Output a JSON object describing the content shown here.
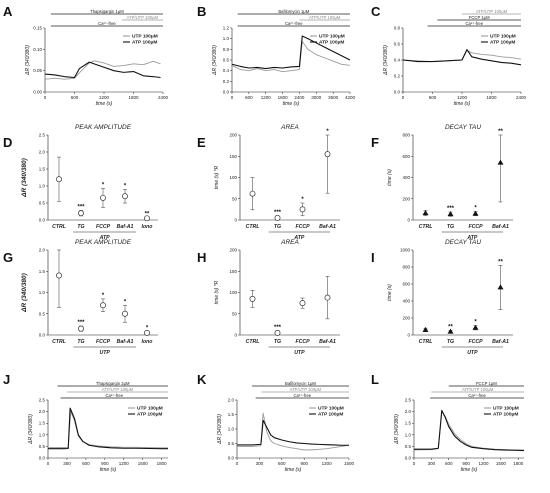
{
  "colors": {
    "atp": "#111111",
    "utp": "#9a9a9a",
    "bar": "#555555",
    "ink": "#222222"
  },
  "chart_data": [
    {
      "panel": "A",
      "type": "line",
      "xlabel": "time (s)",
      "ylabel": "ΔR (340/380)",
      "xlim": [
        0,
        2400
      ],
      "ylim": [
        0.0,
        0.15
      ],
      "xticks": [
        0,
        600,
        1200,
        1800,
        2400
      ],
      "yticks": [
        0,
        0.05,
        0.1,
        0.15
      ],
      "ytick_labels": [
        "0.00",
        "0.05",
        "0.10",
        "0.15"
      ],
      "bars": [
        {
          "label": "Thapsigargin 1μM",
          "start": 120,
          "end": 2400,
          "color": "ink"
        },
        {
          "label": "ATP/UTP 100μM",
          "start": 1560,
          "end": 2400,
          "color": "utp"
        },
        {
          "label": "Ca²⁺-free",
          "start": 120,
          "end": 2400,
          "color": "ink"
        }
      ],
      "series": [
        {
          "name": "UTP 100μM",
          "color": "utp",
          "x": [
            0,
            200,
            400,
            600,
            700,
            900,
            1000,
            1200,
            1400,
            1600,
            1800,
            2000,
            2200,
            2350
          ],
          "y": [
            0.03,
            0.032,
            0.03,
            0.032,
            0.045,
            0.068,
            0.073,
            0.068,
            0.06,
            0.062,
            0.066,
            0.064,
            0.072,
            0.066
          ]
        },
        {
          "name": "ATP 100μM",
          "color": "atp",
          "x": [
            0,
            200,
            400,
            600,
            700,
            900,
            1000,
            1200,
            1400,
            1600,
            1800,
            2000,
            2200,
            2350
          ],
          "y": [
            0.042,
            0.04,
            0.036,
            0.034,
            0.055,
            0.07,
            0.066,
            0.058,
            0.05,
            0.046,
            0.048,
            0.038,
            0.036,
            0.034
          ]
        }
      ]
    },
    {
      "panel": "B",
      "type": "line",
      "xlabel": "time (s)",
      "ylabel": "ΔR (340/380)",
      "xlim": [
        0,
        4200
      ],
      "ylim": [
        0,
        1.2
      ],
      "xticks": [
        0,
        600,
        1200,
        1800,
        2400,
        3000,
        3600,
        4200
      ],
      "yticks": [
        0,
        0.2,
        0.4,
        0.6,
        0.8,
        1.0,
        1.2
      ],
      "ytick_labels": [
        "0.0",
        "0.2",
        "0.4",
        "0.6",
        "0.8",
        "1.0",
        "1.2"
      ],
      "bars": [
        {
          "label": "Bafilomycin 1μM",
          "start": 200,
          "end": 4200,
          "color": "ink"
        },
        {
          "label": "ATP/UTP 100μM",
          "start": 2400,
          "end": 4200,
          "color": "utp"
        },
        {
          "label": "Ca²⁺-free",
          "start": 200,
          "end": 4200,
          "color": "ink"
        }
      ],
      "series": [
        {
          "name": "UTP 100μM",
          "color": "utp",
          "x": [
            0,
            300,
            600,
            900,
            1200,
            1500,
            1800,
            2100,
            2400,
            2500,
            2700,
            3000,
            3300,
            3600,
            3900,
            4200
          ],
          "y": [
            0.5,
            0.42,
            0.4,
            0.44,
            0.4,
            0.42,
            0.38,
            0.4,
            0.42,
            0.95,
            0.8,
            0.7,
            0.64,
            0.58,
            0.52,
            0.5
          ]
        },
        {
          "name": "ATP 100μM",
          "color": "atp",
          "x": [
            0,
            300,
            600,
            900,
            1200,
            1500,
            1800,
            2100,
            2400,
            2500,
            2700,
            3000,
            3300,
            3600,
            3900,
            4200
          ],
          "y": [
            0.52,
            0.48,
            0.45,
            0.46,
            0.44,
            0.46,
            0.45,
            0.47,
            0.48,
            1.05,
            1.0,
            0.92,
            0.84,
            0.76,
            0.68,
            0.6
          ]
        }
      ]
    },
    {
      "panel": "C",
      "type": "line",
      "xlabel": "time (s)",
      "ylabel": "ΔR (340/380)",
      "xlim": [
        0,
        2400
      ],
      "ylim": [
        0.0,
        0.8
      ],
      "xticks": [
        0,
        600,
        1200,
        1800,
        2400
      ],
      "yticks": [
        0,
        0.2,
        0.4,
        0.6,
        0.8
      ],
      "ytick_labels": [
        "0.0",
        "0.2",
        "0.4",
        "0.6",
        "0.8"
      ],
      "bars": [
        {
          "label": "ATP/UTP 100μM",
          "start": 1200,
          "end": 2400,
          "color": "utp"
        },
        {
          "label": "FCCP 1μM",
          "start": 700,
          "end": 2400,
          "color": "ink"
        },
        {
          "label": "Ca²⁺-free",
          "start": 500,
          "end": 2400,
          "color": "ink"
        }
      ],
      "series": [
        {
          "name": "UTP 100μM",
          "color": "utp",
          "x": [
            0,
            300,
            600,
            900,
            1200,
            1300,
            1400,
            1600,
            1800,
            2000,
            2200,
            2400
          ],
          "y": [
            0.4,
            0.39,
            0.38,
            0.39,
            0.4,
            0.52,
            0.49,
            0.47,
            0.46,
            0.44,
            0.43,
            0.41
          ]
        },
        {
          "name": "ATP 100μM",
          "color": "atp",
          "x": [
            0,
            300,
            600,
            900,
            1200,
            1300,
            1400,
            1600,
            1800,
            2000,
            2200,
            2400
          ],
          "y": [
            0.4,
            0.38,
            0.38,
            0.39,
            0.4,
            0.53,
            0.44,
            0.41,
            0.39,
            0.37,
            0.36,
            0.34
          ]
        }
      ]
    },
    {
      "panel": "D",
      "type": "scatter",
      "title": "PEAK AMPLITUDE",
      "group": "ATP",
      "ylabel": "ΔR (340/380)",
      "ylim": [
        0,
        2.5
      ],
      "yticks": [
        0,
        0.5,
        1,
        1.5,
        2,
        2.5
      ],
      "ytick_labels": [
        "0.0",
        "0.5",
        "1.0",
        "1.5",
        "2.0",
        "2.5"
      ],
      "categories": [
        "CTRL",
        "TG",
        "FCCP",
        "Baf-A1",
        "Iono"
      ],
      "values": [
        1.2,
        0.2,
        0.65,
        0.7,
        0.05
      ],
      "err": [
        0.65,
        0.08,
        0.28,
        0.2,
        0.03
      ],
      "sig": [
        "",
        "***",
        "*",
        "*",
        "**"
      ]
    },
    {
      "panel": "E",
      "type": "scatter",
      "title": "AREA",
      "group": "ATP",
      "ylabel": "time (s) *R",
      "ylim": [
        0,
        200
      ],
      "yticks": [
        0,
        50,
        100,
        150,
        200
      ],
      "ytick_labels": [
        "0",
        "50",
        "100",
        "150",
        "200"
      ],
      "categories": [
        "CTRL",
        "TG",
        "FCCP",
        "Baf-A1"
      ],
      "values": [
        62,
        5,
        25,
        155
      ],
      "err": [
        38,
        4,
        15,
        92
      ],
      "sig": [
        "",
        "***",
        "*",
        "*"
      ]
    },
    {
      "panel": "F",
      "type": "scatter",
      "title": "DECAY TAU",
      "group": "ATP",
      "ylabel": "time (s)",
      "ylim": [
        0,
        800
      ],
      "yticks": [
        0,
        200,
        400,
        600,
        800
      ],
      "ytick_labels": [
        "0",
        "200",
        "400",
        "600",
        "800"
      ],
      "categories": [
        "CTRL",
        "TG",
        "FCCP",
        "Baf-A1"
      ],
      "values": [
        65,
        55,
        60,
        540
      ],
      "err": [
        25,
        20,
        20,
        370
      ],
      "sig": [
        "",
        "***",
        "*",
        "**"
      ]
    },
    {
      "panel": "G",
      "type": "scatter",
      "title": "PEAK AMPLITUDE",
      "group": "UTP",
      "ylabel": "ΔR (340/380)",
      "ylim": [
        0,
        2.0
      ],
      "yticks": [
        0,
        0.5,
        1,
        1.5,
        2
      ],
      "ytick_labels": [
        "0.0",
        "0.5",
        "1.0",
        "1.5",
        "2.0"
      ],
      "categories": [
        "CTRL",
        "TG",
        "FCCP",
        "Baf-A1",
        "Iono"
      ],
      "values": [
        1.4,
        0.15,
        0.7,
        0.5,
        0.05
      ],
      "err": [
        0.75,
        0.06,
        0.15,
        0.2,
        0.03
      ],
      "sig": [
        "",
        "***",
        "*",
        "*",
        "*"
      ]
    },
    {
      "panel": "H",
      "type": "scatter",
      "title": "AREA",
      "group": "UTP",
      "ylabel": "time (s) *R",
      "ylim": [
        0,
        200
      ],
      "yticks": [
        0,
        50,
        100,
        150,
        200
      ],
      "ytick_labels": [
        "0",
        "50",
        "100",
        "150",
        "200"
      ],
      "categories": [
        "CTRL",
        "TG",
        "FCCP",
        "Baf-A1"
      ],
      "values": [
        85,
        5,
        75,
        88
      ],
      "err": [
        20,
        4,
        12,
        50
      ],
      "sig": [
        "",
        "***",
        "",
        ""
      ]
    },
    {
      "panel": "I",
      "type": "scatter",
      "title": "DECAY TAU",
      "group": "UTP",
      "ylabel": "time (s)",
      "ylim": [
        0,
        1000
      ],
      "yticks": [
        0,
        200,
        400,
        600,
        800,
        1000
      ],
      "ytick_labels": [
        "0",
        "200",
        "400",
        "600",
        "800",
        "1000"
      ],
      "categories": [
        "CTRL",
        "TG",
        "FCCP",
        "Baf-A1"
      ],
      "values": [
        60,
        40,
        85,
        560
      ],
      "err": [
        20,
        15,
        25,
        260
      ],
      "sig": [
        "",
        "**",
        "*",
        "**"
      ]
    },
    {
      "panel": "J",
      "type": "line",
      "xlabel": "time (s)",
      "ylabel": "ΔR (340/380)",
      "xlim": [
        0,
        1900
      ],
      "ylim": [
        0.0,
        2.5
      ],
      "xticks": [
        0,
        300,
        600,
        900,
        1200,
        1500,
        1800
      ],
      "yticks": [
        0,
        0.5,
        1.0,
        1.5,
        2.0,
        2.5
      ],
      "ytick_labels": [
        "0.0",
        "0.5",
        "1.0",
        "1.5",
        "2.0",
        "2.5"
      ],
      "bars": [
        {
          "label": "Thapsigargin 2μM",
          "start": 150,
          "end": 1900,
          "color": "ink"
        },
        {
          "label": "ATP/UTP 100μM",
          "start": 300,
          "end": 1900,
          "color": "utp"
        },
        {
          "label": "Ca²⁺-free",
          "start": 200,
          "end": 1900,
          "color": "ink"
        }
      ],
      "series": [
        {
          "name": "UTP 100μM",
          "color": "utp",
          "x": [
            0,
            250,
            320,
            360,
            420,
            480,
            550,
            650,
            800,
            1000,
            1200,
            1400,
            1600,
            1800,
            1900
          ],
          "y": [
            0.45,
            0.45,
            0.46,
            2.0,
            1.6,
            0.95,
            0.7,
            0.58,
            0.52,
            0.48,
            0.46,
            0.46,
            0.45,
            0.44,
            0.44
          ]
        },
        {
          "name": "ATP 100μM",
          "color": "atp",
          "x": [
            0,
            250,
            320,
            350,
            420,
            480,
            550,
            650,
            800,
            1000,
            1200,
            1400,
            1600,
            1800,
            1900
          ],
          "y": [
            0.4,
            0.4,
            0.41,
            2.15,
            1.7,
            1.0,
            0.72,
            0.55,
            0.48,
            0.44,
            0.42,
            0.42,
            0.41,
            0.4,
            0.4
          ]
        }
      ]
    },
    {
      "panel": "K",
      "type": "line",
      "xlabel": "time (s)",
      "ylabel": "ΔR (340/380)",
      "xlim": [
        0,
        1500
      ],
      "ylim": [
        0.0,
        2.0
      ],
      "xticks": [
        0,
        300,
        600,
        900,
        1200,
        1500
      ],
      "yticks": [
        0,
        0.5,
        1.0,
        1.5,
        2.0
      ],
      "ytick_labels": [
        "0.0",
        "0.5",
        "1.0",
        "1.5",
        "2.0"
      ],
      "bars": [
        {
          "label": "Bafilomycin 1μM",
          "start": 200,
          "end": 1500,
          "color": "ink"
        },
        {
          "label": "ATP/UTP 100μM",
          "start": 330,
          "end": 1500,
          "color": "utp"
        },
        {
          "label": "Ca²⁺-free",
          "start": 250,
          "end": 1500,
          "color": "ink"
        }
      ],
      "series": [
        {
          "name": "UTP 100μM",
          "color": "utp",
          "x": [
            0,
            200,
            320,
            350,
            400,
            450,
            500,
            600,
            700,
            800,
            900,
            1000,
            1100,
            1200,
            1300,
            1400,
            1500
          ],
          "y": [
            0.4,
            0.4,
            0.42,
            1.55,
            0.9,
            0.6,
            0.5,
            0.42,
            0.36,
            0.32,
            0.28,
            0.28,
            0.3,
            0.32,
            0.36,
            0.4,
            0.44
          ]
        },
        {
          "name": "ATP 100μM",
          "color": "atp",
          "x": [
            0,
            200,
            320,
            350,
            400,
            450,
            500,
            600,
            700,
            800,
            900,
            1000,
            1100,
            1200,
            1300,
            1400,
            1500
          ],
          "y": [
            0.45,
            0.45,
            0.47,
            1.3,
            1.05,
            0.8,
            0.7,
            0.62,
            0.56,
            0.52,
            0.5,
            0.48,
            0.47,
            0.46,
            0.45,
            0.44,
            0.44
          ]
        }
      ]
    },
    {
      "panel": "L",
      "type": "line",
      "xlabel": "time (s)",
      "ylabel": "ΔR (340/380)",
      "xlim": [
        0,
        1900
      ],
      "ylim": [
        0.0,
        2.5
      ],
      "xticks": [
        0,
        300,
        600,
        900,
        1200,
        1500,
        1800
      ],
      "yticks": [
        0,
        0.5,
        1.0,
        1.5,
        2.0,
        2.5
      ],
      "ytick_labels": [
        "0.0",
        "0.5",
        "1.0",
        "1.5",
        "2.0",
        "2.5"
      ],
      "bars": [
        {
          "label": "FCCP 1μM",
          "start": 600,
          "end": 1900,
          "color": "ink"
        },
        {
          "label": "ATP/UTP 100μM",
          "start": 300,
          "end": 1900,
          "color": "utp"
        },
        {
          "label": "Ca²⁺-free",
          "start": 280,
          "end": 1900,
          "color": "ink"
        }
      ],
      "series": [
        {
          "name": "UTP 100μM",
          "color": "utp",
          "x": [
            0,
            300,
            420,
            480,
            540,
            600,
            700,
            800,
            900,
            1000,
            1200,
            1400,
            1600,
            1800,
            1900
          ],
          "y": [
            0.35,
            0.36,
            0.4,
            2.0,
            1.8,
            1.45,
            1.05,
            0.8,
            0.62,
            0.5,
            0.42,
            0.38,
            0.36,
            0.34,
            0.34
          ]
        },
        {
          "name": "ATP 100μM",
          "color": "atp",
          "x": [
            0,
            300,
            420,
            480,
            540,
            600,
            700,
            800,
            900,
            1000,
            1200,
            1400,
            1600,
            1800,
            1900
          ],
          "y": [
            0.38,
            0.38,
            0.42,
            2.05,
            1.75,
            1.35,
            0.95,
            0.72,
            0.56,
            0.46,
            0.4,
            0.36,
            0.34,
            0.33,
            0.32
          ]
        }
      ]
    }
  ]
}
